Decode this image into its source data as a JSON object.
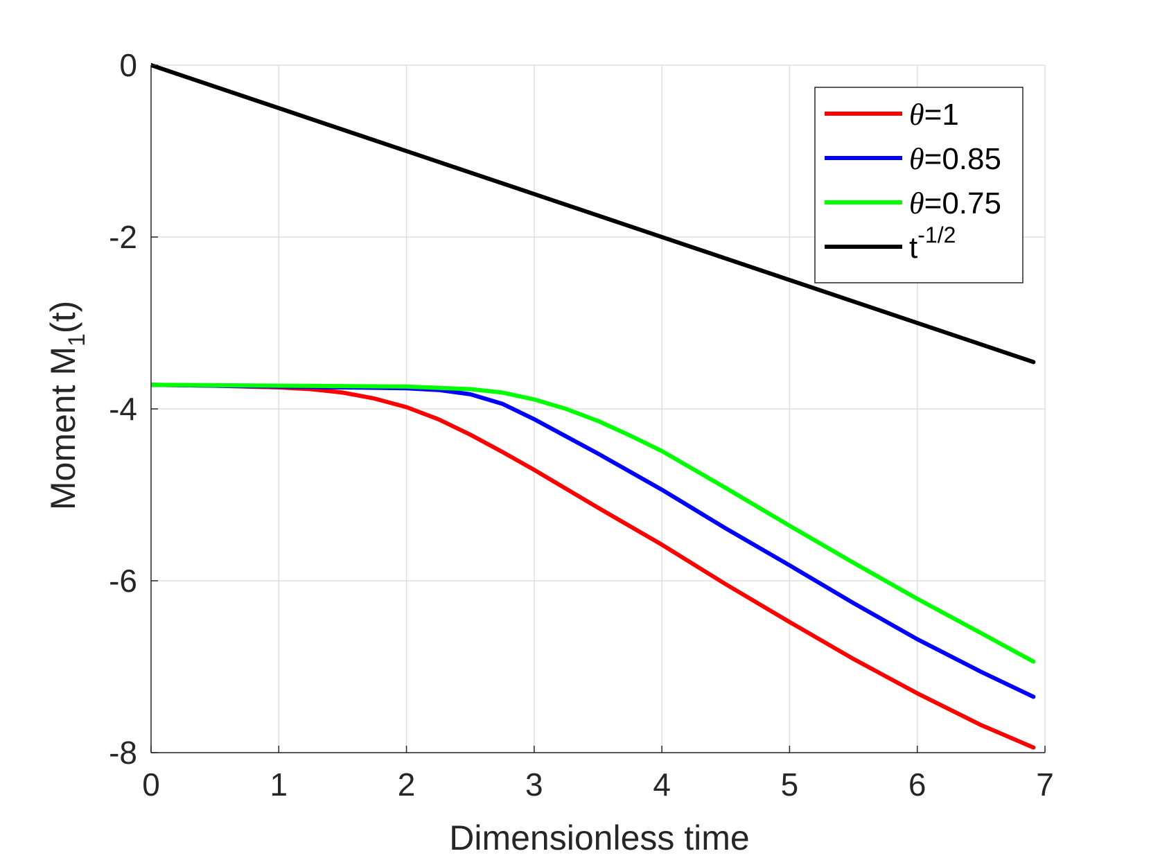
{
  "chart_data": {
    "type": "line",
    "title": "",
    "xlabel": "Dimensionless time",
    "ylabel": {
      "prefix": "Moment M",
      "subscript": "1",
      "suffix": "(t)"
    },
    "xlim": [
      0,
      7
    ],
    "ylim": [
      -8,
      0
    ],
    "xticks": [
      0,
      1,
      2,
      3,
      4,
      5,
      6,
      7
    ],
    "yticks": [
      0,
      -2,
      -4,
      -6,
      -8
    ],
    "xtick_labels": [
      "0",
      "1",
      "2",
      "3",
      "4",
      "5",
      "6",
      "7"
    ],
    "ytick_labels": [
      "0",
      "-2",
      "-4",
      "-6",
      "-8"
    ],
    "grid": true,
    "legend_position": "top-right",
    "series": [
      {
        "name": "θ=1",
        "legend": {
          "symbol": "θ",
          "rest": "=1"
        },
        "color": "#ff0000",
        "x": [
          0,
          0.5,
          1.0,
          1.25,
          1.5,
          1.75,
          2.0,
          2.25,
          2.5,
          2.75,
          3.0,
          3.5,
          4.0,
          4.5,
          5.0,
          5.5,
          6.0,
          6.5,
          6.91
        ],
        "y": [
          -3.72,
          -3.73,
          -3.75,
          -3.77,
          -3.81,
          -3.88,
          -3.98,
          -4.12,
          -4.3,
          -4.5,
          -4.71,
          -5.15,
          -5.58,
          -6.04,
          -6.48,
          -6.91,
          -7.31,
          -7.68,
          -7.94
        ]
      },
      {
        "name": "θ=0.85",
        "legend": {
          "symbol": "θ",
          "rest": "=0.85"
        },
        "color": "#0000ff",
        "x": [
          0,
          1.0,
          1.5,
          2.0,
          2.25,
          2.5,
          2.75,
          3.0,
          3.25,
          3.5,
          4.0,
          4.5,
          5.0,
          5.5,
          6.0,
          6.5,
          6.91
        ],
        "y": [
          -3.72,
          -3.74,
          -3.75,
          -3.76,
          -3.78,
          -3.83,
          -3.94,
          -4.12,
          -4.32,
          -4.52,
          -4.94,
          -5.39,
          -5.82,
          -6.26,
          -6.68,
          -7.06,
          -7.35
        ]
      },
      {
        "name": "θ=0.75",
        "legend": {
          "symbol": "θ",
          "rest": "=0.75"
        },
        "color": "#00ff00",
        "x": [
          0,
          1.0,
          2.0,
          2.5,
          2.75,
          3.0,
          3.25,
          3.5,
          3.75,
          4.0,
          4.5,
          5.0,
          5.5,
          6.0,
          6.5,
          6.91
        ],
        "y": [
          -3.72,
          -3.73,
          -3.74,
          -3.77,
          -3.81,
          -3.89,
          -4.0,
          -4.14,
          -4.31,
          -4.49,
          -4.92,
          -5.36,
          -5.79,
          -6.21,
          -6.61,
          -6.94
        ]
      },
      {
        "name": "t^-1/2",
        "legend": {
          "base": "t",
          "superscript": "-1/2"
        },
        "color": "#000000",
        "x": [
          0,
          6.91
        ],
        "y": [
          0,
          -3.455
        ]
      }
    ]
  }
}
